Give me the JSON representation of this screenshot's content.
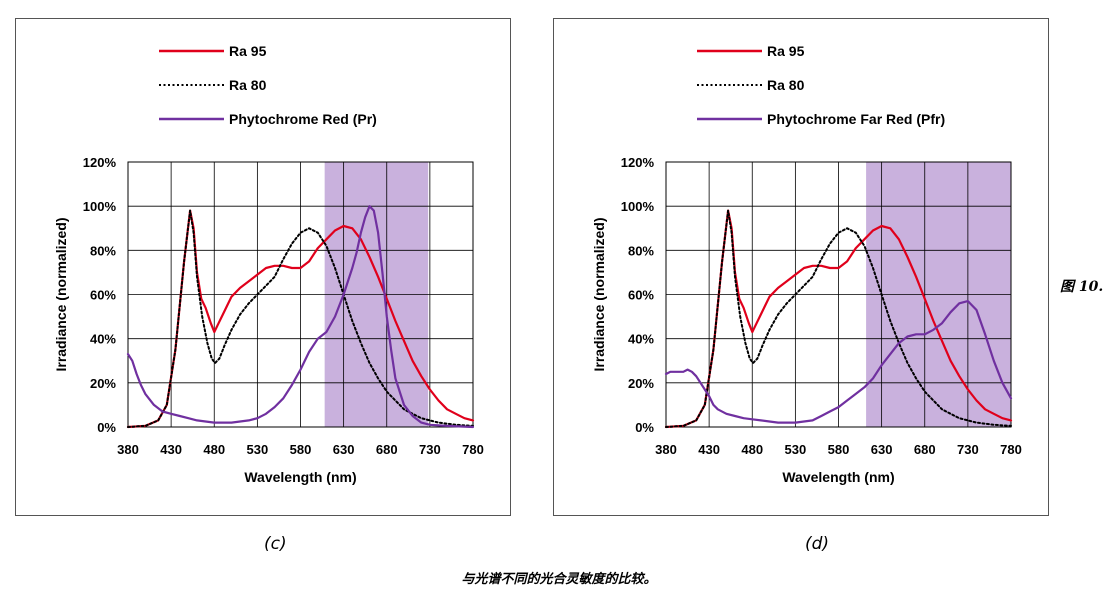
{
  "caption": "与光谱不同的光合灵敏度的比较。",
  "side_label": "图 10.",
  "chart_data": [
    {
      "id": "c",
      "type": "line",
      "panel_label": "(c)",
      "xlabel": "Wavelength (nm)",
      "ylabel": "Irradiance (normalized)",
      "xlim": [
        380,
        780
      ],
      "ylim": [
        0,
        120
      ],
      "x_ticks": [
        380,
        430,
        480,
        530,
        580,
        630,
        680,
        730,
        780
      ],
      "y_ticks": [
        0,
        20,
        40,
        60,
        80,
        100,
        120
      ],
      "y_tick_labels": [
        "0%",
        "20%",
        "40%",
        "60%",
        "80%",
        "100%",
        "120%"
      ],
      "grid": true,
      "legend_position": "top-left",
      "shaded_band": {
        "x_start": 608,
        "x_end": 728,
        "color": "#c9b1dd"
      },
      "series": [
        {
          "name": "Ra 95",
          "color": "#e0001b",
          "style": "solid",
          "points": [
            [
              380,
              0
            ],
            [
              400,
              0.5
            ],
            [
              415,
              3
            ],
            [
              425,
              10
            ],
            [
              435,
              35
            ],
            [
              445,
              75
            ],
            [
              452,
              98
            ],
            [
              456,
              90
            ],
            [
              460,
              70
            ],
            [
              465,
              58
            ],
            [
              470,
              54
            ],
            [
              476,
              47
            ],
            [
              480,
              43
            ],
            [
              485,
              47
            ],
            [
              490,
              51
            ],
            [
              495,
              55
            ],
            [
              500,
              59
            ],
            [
              510,
              63
            ],
            [
              520,
              66
            ],
            [
              530,
              69
            ],
            [
              540,
              72
            ],
            [
              550,
              73
            ],
            [
              560,
              73
            ],
            [
              570,
              72
            ],
            [
              580,
              72
            ],
            [
              590,
              75
            ],
            [
              600,
              81
            ],
            [
              610,
              85
            ],
            [
              620,
              89
            ],
            [
              630,
              91
            ],
            [
              640,
              90
            ],
            [
              650,
              85
            ],
            [
              660,
              77
            ],
            [
              670,
              68
            ],
            [
              680,
              58
            ],
            [
              690,
              48
            ],
            [
              700,
              39
            ],
            [
              710,
              30
            ],
            [
              720,
              23
            ],
            [
              730,
              17
            ],
            [
              740,
              12
            ],
            [
              750,
              8
            ],
            [
              760,
              6
            ],
            [
              770,
              4
            ],
            [
              780,
              3
            ]
          ]
        },
        {
          "name": "Ra 80",
          "color": "#000000",
          "style": "dotted",
          "points": [
            [
              380,
              0
            ],
            [
              400,
              0.5
            ],
            [
              415,
              3
            ],
            [
              425,
              10
            ],
            [
              435,
              35
            ],
            [
              445,
              75
            ],
            [
              452,
              98
            ],
            [
              456,
              88
            ],
            [
              460,
              68
            ],
            [
              466,
              50
            ],
            [
              472,
              38
            ],
            [
              477,
              31
            ],
            [
              481,
              29
            ],
            [
              486,
              31
            ],
            [
              492,
              37
            ],
            [
              500,
              44
            ],
            [
              510,
              51
            ],
            [
              520,
              56
            ],
            [
              530,
              60
            ],
            [
              540,
              64
            ],
            [
              550,
              68
            ],
            [
              560,
              76
            ],
            [
              570,
              83
            ],
            [
              580,
              88
            ],
            [
              590,
              90
            ],
            [
              600,
              88
            ],
            [
              610,
              82
            ],
            [
              620,
              72
            ],
            [
              630,
              60
            ],
            [
              640,
              48
            ],
            [
              650,
              38
            ],
            [
              660,
              29
            ],
            [
              670,
              22
            ],
            [
              680,
              16
            ],
            [
              690,
              12
            ],
            [
              700,
              8
            ],
            [
              710,
              6
            ],
            [
              720,
              4
            ],
            [
              730,
              3
            ],
            [
              740,
              2
            ],
            [
              760,
              1
            ],
            [
              780,
              0.5
            ]
          ]
        },
        {
          "name": "Phytochrome Red (Pr)",
          "color": "#7030a0",
          "style": "solid",
          "points": [
            [
              380,
              33
            ],
            [
              385,
              30
            ],
            [
              390,
              24
            ],
            [
              395,
              19
            ],
            [
              400,
              15
            ],
            [
              410,
              10
            ],
            [
              420,
              7
            ],
            [
              430,
              6
            ],
            [
              440,
              5
            ],
            [
              450,
              4
            ],
            [
              460,
              3
            ],
            [
              470,
              2.5
            ],
            [
              480,
              2
            ],
            [
              490,
              2
            ],
            [
              500,
              2
            ],
            [
              510,
              2.5
            ],
            [
              520,
              3
            ],
            [
              530,
              4
            ],
            [
              540,
              6
            ],
            [
              550,
              9
            ],
            [
              560,
              13
            ],
            [
              570,
              19
            ],
            [
              580,
              26
            ],
            [
              590,
              34
            ],
            [
              600,
              40
            ],
            [
              610,
              43
            ],
            [
              620,
              50
            ],
            [
              630,
              60
            ],
            [
              640,
              72
            ],
            [
              645,
              79
            ],
            [
              650,
              88
            ],
            [
              655,
              95
            ],
            [
              660,
              100
            ],
            [
              665,
              98
            ],
            [
              670,
              88
            ],
            [
              675,
              70
            ],
            [
              680,
              50
            ],
            [
              685,
              35
            ],
            [
              690,
              22
            ],
            [
              700,
              10
            ],
            [
              710,
              5
            ],
            [
              720,
              2
            ],
            [
              730,
              1
            ],
            [
              750,
              0.5
            ],
            [
              780,
              0
            ]
          ]
        }
      ]
    },
    {
      "id": "d",
      "type": "line",
      "panel_label": "(d)",
      "xlabel": "Wavelength (nm)",
      "ylabel": "Irradiance (normalized)",
      "xlim": [
        380,
        780
      ],
      "ylim": [
        0,
        120
      ],
      "x_ticks": [
        380,
        430,
        480,
        530,
        580,
        630,
        680,
        730,
        780
      ],
      "y_ticks": [
        0,
        20,
        40,
        60,
        80,
        100,
        120
      ],
      "y_tick_labels": [
        "0%",
        "20%",
        "40%",
        "60%",
        "80%",
        "100%",
        "120%"
      ],
      "grid": true,
      "legend_position": "top-left",
      "shaded_band": {
        "x_start": 612,
        "x_end": 780,
        "color": "#c9b1dd"
      },
      "series": [
        {
          "name": "Ra 95",
          "color": "#e0001b",
          "style": "solid",
          "points": [
            [
              380,
              0
            ],
            [
              400,
              0.5
            ],
            [
              415,
              3
            ],
            [
              425,
              10
            ],
            [
              435,
              35
            ],
            [
              445,
              75
            ],
            [
              452,
              98
            ],
            [
              456,
              90
            ],
            [
              460,
              70
            ],
            [
              465,
              58
            ],
            [
              470,
              54
            ],
            [
              476,
              47
            ],
            [
              480,
              43
            ],
            [
              485,
              47
            ],
            [
              490,
              51
            ],
            [
              495,
              55
            ],
            [
              500,
              59
            ],
            [
              510,
              63
            ],
            [
              520,
              66
            ],
            [
              530,
              69
            ],
            [
              540,
              72
            ],
            [
              550,
              73
            ],
            [
              560,
              73
            ],
            [
              570,
              72
            ],
            [
              580,
              72
            ],
            [
              590,
              75
            ],
            [
              600,
              81
            ],
            [
              610,
              85
            ],
            [
              620,
              89
            ],
            [
              630,
              91
            ],
            [
              640,
              90
            ],
            [
              650,
              85
            ],
            [
              660,
              77
            ],
            [
              670,
              68
            ],
            [
              680,
              58
            ],
            [
              690,
              48
            ],
            [
              700,
              39
            ],
            [
              710,
              30
            ],
            [
              720,
              23
            ],
            [
              730,
              17
            ],
            [
              740,
              12
            ],
            [
              750,
              8
            ],
            [
              760,
              6
            ],
            [
              770,
              4
            ],
            [
              780,
              3
            ]
          ]
        },
        {
          "name": "Ra 80",
          "color": "#000000",
          "style": "dotted",
          "points": [
            [
              380,
              0
            ],
            [
              400,
              0.5
            ],
            [
              415,
              3
            ],
            [
              425,
              10
            ],
            [
              435,
              35
            ],
            [
              445,
              75
            ],
            [
              452,
              98
            ],
            [
              456,
              88
            ],
            [
              460,
              68
            ],
            [
              466,
              50
            ],
            [
              472,
              38
            ],
            [
              477,
              31
            ],
            [
              481,
              29
            ],
            [
              486,
              31
            ],
            [
              492,
              37
            ],
            [
              500,
              44
            ],
            [
              510,
              51
            ],
            [
              520,
              56
            ],
            [
              530,
              60
            ],
            [
              540,
              64
            ],
            [
              550,
              68
            ],
            [
              560,
              76
            ],
            [
              570,
              83
            ],
            [
              580,
              88
            ],
            [
              590,
              90
            ],
            [
              600,
              88
            ],
            [
              610,
              82
            ],
            [
              620,
              72
            ],
            [
              630,
              60
            ],
            [
              640,
              48
            ],
            [
              650,
              38
            ],
            [
              660,
              29
            ],
            [
              670,
              22
            ],
            [
              680,
              16
            ],
            [
              690,
              12
            ],
            [
              700,
              8
            ],
            [
              710,
              6
            ],
            [
              720,
              4
            ],
            [
              730,
              3
            ],
            [
              740,
              2
            ],
            [
              760,
              1
            ],
            [
              780,
              0.5
            ]
          ]
        },
        {
          "name": "Phytochrome Far Red (Pfr)",
          "color": "#7030a0",
          "style": "solid",
          "points": [
            [
              380,
              24
            ],
            [
              385,
              25
            ],
            [
              390,
              25
            ],
            [
              395,
              25
            ],
            [
              400,
              25
            ],
            [
              405,
              26
            ],
            [
              410,
              25
            ],
            [
              415,
              23
            ],
            [
              420,
              20
            ],
            [
              425,
              17
            ],
            [
              430,
              14
            ],
            [
              435,
              10
            ],
            [
              440,
              8
            ],
            [
              450,
              6
            ],
            [
              460,
              5
            ],
            [
              470,
              4
            ],
            [
              480,
              3.5
            ],
            [
              490,
              3
            ],
            [
              500,
              2.5
            ],
            [
              510,
              2
            ],
            [
              520,
              2
            ],
            [
              530,
              2
            ],
            [
              540,
              2.5
            ],
            [
              550,
              3
            ],
            [
              560,
              5
            ],
            [
              570,
              7
            ],
            [
              580,
              9
            ],
            [
              590,
              12
            ],
            [
              600,
              15
            ],
            [
              610,
              18
            ],
            [
              620,
              22
            ],
            [
              630,
              28
            ],
            [
              640,
              33
            ],
            [
              650,
              38
            ],
            [
              660,
              41
            ],
            [
              670,
              42
            ],
            [
              680,
              42
            ],
            [
              690,
              44
            ],
            [
              700,
              47
            ],
            [
              710,
              52
            ],
            [
              720,
              56
            ],
            [
              730,
              57
            ],
            [
              740,
              53
            ],
            [
              750,
              42
            ],
            [
              760,
              30
            ],
            [
              770,
              20
            ],
            [
              780,
              13
            ]
          ]
        }
      ]
    }
  ]
}
